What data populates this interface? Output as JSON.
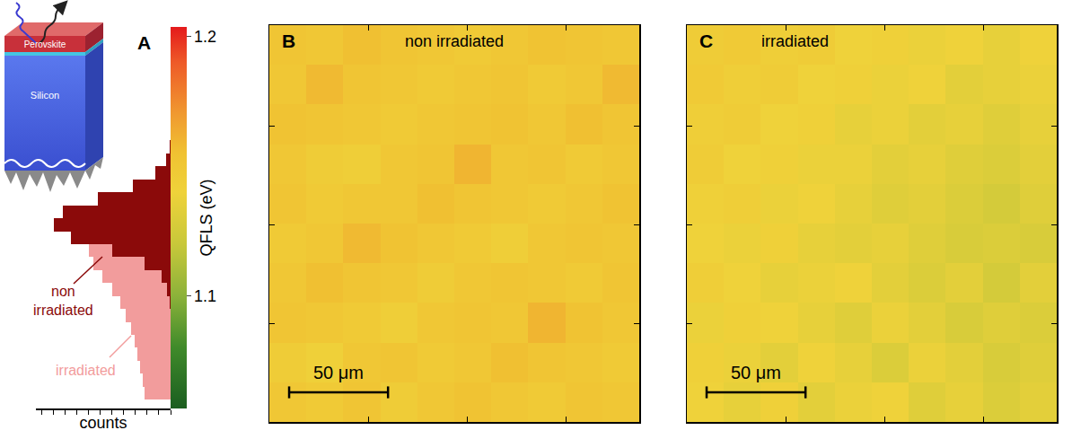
{
  "chart_data": [
    {
      "type": "histogram",
      "panel": "A",
      "orientation": "horizontal",
      "x_label": "counts",
      "xlim": [
        0,
        115
      ],
      "xticks": [
        0,
        10,
        20,
        30,
        40,
        50,
        60,
        70,
        80,
        90,
        100,
        110
      ],
      "ylim": [
        1.0566,
        1.2038
      ],
      "tick_labels": false,
      "bins": [
        1.06,
        1.065,
        1.07,
        1.075,
        1.08,
        1.085,
        1.09,
        1.095,
        1.1,
        1.105,
        1.11,
        1.115,
        1.12,
        1.125,
        1.13,
        1.135,
        1.14,
        1.145,
        1.15,
        1.155,
        1.16
      ],
      "series": [
        {
          "name": "irradiated",
          "color": "#f29c9c",
          "values": [
            22,
            24,
            26,
            28,
            31,
            34,
            38,
            43,
            50,
            58,
            66,
            70,
            63,
            48,
            30,
            16,
            8,
            3,
            1,
            0
          ]
        },
        {
          "name": "non irradiated",
          "color": "#8b0a0a",
          "values": [
            0,
            0,
            0,
            0,
            0,
            0,
            0,
            1,
            3,
            8,
            22,
            50,
            85,
            100,
            92,
            62,
            32,
            13,
            4,
            1
          ]
        }
      ],
      "colorbar": {
        "title": "QFLS (eV)",
        "range": [
          1.0566,
          1.2038
        ],
        "ticks": [
          1.1,
          1.2
        ]
      },
      "inset": {
        "layers": [
          "Perovskite",
          "Silicon"
        ]
      }
    },
    {
      "type": "heatmap",
      "panel": "B",
      "title": "non irradiated",
      "xlim": [
        0,
        187
      ],
      "ylim": [
        0,
        201
      ],
      "xticks": [
        50,
        100,
        150
      ],
      "yticks": [
        50,
        100,
        150
      ],
      "tick_labels": false,
      "scale_bar": {
        "length": 50,
        "label": "50 μm"
      },
      "color_range": [
        1.0566,
        1.2038
      ],
      "cells": [
        [
          1.15,
          1.148,
          1.152,
          1.146,
          1.15,
          1.154,
          1.15,
          1.148,
          1.152,
          1.15
        ],
        [
          1.146,
          1.142,
          1.15,
          1.152,
          1.148,
          1.15,
          1.156,
          1.152,
          1.15,
          1.148
        ],
        [
          1.152,
          1.15,
          1.148,
          1.144,
          1.15,
          1.152,
          1.15,
          1.16,
          1.154,
          1.15
        ],
        [
          1.15,
          1.156,
          1.152,
          1.15,
          1.146,
          1.15,
          1.152,
          1.15,
          1.148,
          1.152
        ],
        [
          1.148,
          1.15,
          1.158,
          1.154,
          1.15,
          1.148,
          1.144,
          1.15,
          1.152,
          1.15
        ],
        [
          1.152,
          1.148,
          1.15,
          1.15,
          1.156,
          1.152,
          1.15,
          1.148,
          1.15,
          1.154
        ],
        [
          1.15,
          1.146,
          1.144,
          1.15,
          1.152,
          1.16,
          1.15,
          1.152,
          1.148,
          1.15
        ],
        [
          1.154,
          1.152,
          1.15,
          1.148,
          1.15,
          1.152,
          1.154,
          1.15,
          1.156,
          1.152
        ],
        [
          1.15,
          1.158,
          1.152,
          1.15,
          1.148,
          1.15,
          1.152,
          1.148,
          1.15,
          1.158
        ],
        [
          1.152,
          1.15,
          1.156,
          1.152,
          1.15,
          1.148,
          1.15,
          1.154,
          1.152,
          1.15
        ]
      ]
    },
    {
      "type": "heatmap",
      "panel": "C",
      "title": "irradiated",
      "xlim": [
        0,
        187
      ],
      "ylim": [
        0,
        201
      ],
      "xticks": [
        50,
        100,
        150
      ],
      "yticks": [
        50,
        100,
        150
      ],
      "tick_labels": false,
      "scale_bar": {
        "length": 50,
        "label": "50 μm"
      },
      "color_range": [
        1.0566,
        1.2038
      ],
      "cells": [
        [
          1.14,
          1.136,
          1.142,
          1.134,
          1.138,
          1.14,
          1.132,
          1.136,
          1.13,
          1.134
        ],
        [
          1.142,
          1.138,
          1.134,
          1.14,
          1.136,
          1.13,
          1.138,
          1.134,
          1.128,
          1.132
        ],
        [
          1.138,
          1.142,
          1.14,
          1.136,
          1.132,
          1.138,
          1.134,
          1.128,
          1.132,
          1.13
        ],
        [
          1.144,
          1.14,
          1.136,
          1.138,
          1.14,
          1.134,
          1.13,
          1.134,
          1.126,
          1.134
        ],
        [
          1.14,
          1.138,
          1.142,
          1.136,
          1.134,
          1.136,
          1.132,
          1.128,
          1.13,
          1.128
        ],
        [
          1.142,
          1.144,
          1.138,
          1.14,
          1.136,
          1.132,
          1.134,
          1.13,
          1.126,
          1.132
        ],
        [
          1.146,
          1.14,
          1.142,
          1.138,
          1.138,
          1.134,
          1.136,
          1.132,
          1.13,
          1.134
        ],
        [
          1.144,
          1.146,
          1.14,
          1.142,
          1.136,
          1.138,
          1.134,
          1.136,
          1.132,
          1.136
        ],
        [
          1.148,
          1.144,
          1.146,
          1.14,
          1.142,
          1.138,
          1.14,
          1.134,
          1.136,
          1.138
        ],
        [
          1.146,
          1.148,
          1.144,
          1.146,
          1.14,
          1.142,
          1.138,
          1.14,
          1.136,
          1.14
        ]
      ]
    }
  ]
}
